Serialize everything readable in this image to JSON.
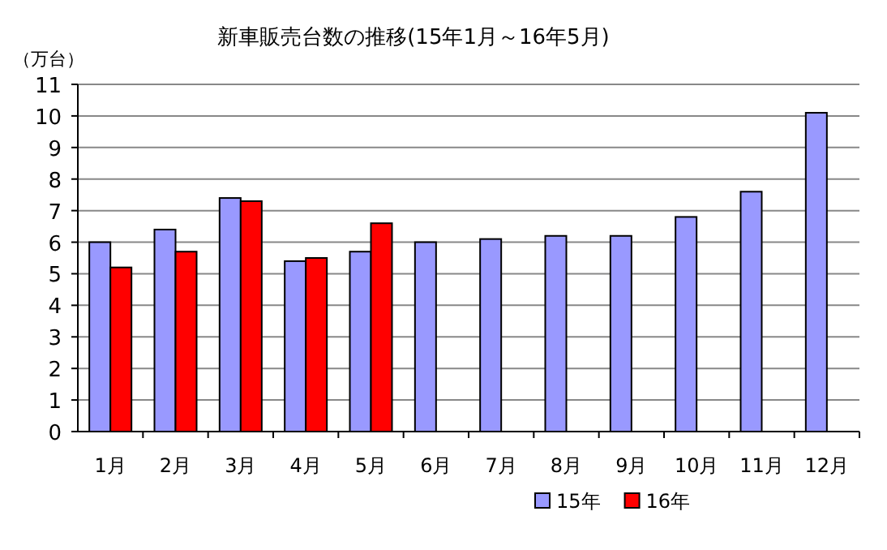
{
  "chart_data": {
    "type": "bar",
    "title": "新車販売台数の推移(15年1月～16年5月)",
    "ylabel": "（万台）",
    "categories": [
      "1月",
      "2月",
      "3月",
      "4月",
      "5月",
      "6月",
      "7月",
      "8月",
      "9月",
      "10月",
      "11月",
      "12月"
    ],
    "series": [
      {
        "name": "15年",
        "color": "#9999ff",
        "values": [
          6.0,
          6.4,
          7.4,
          5.4,
          5.7,
          6.0,
          6.1,
          6.2,
          6.2,
          6.8,
          7.6,
          10.1
        ]
      },
      {
        "name": "16年",
        "color": "#ff0000",
        "values": [
          5.2,
          5.7,
          7.3,
          5.5,
          6.6,
          null,
          null,
          null,
          null,
          null,
          null,
          null
        ]
      }
    ],
    "ylim": [
      0,
      11
    ],
    "yticks": [
      0,
      1,
      2,
      3,
      4,
      5,
      6,
      7,
      8,
      9,
      10,
      11
    ],
    "grid": "y",
    "legend": "bottom"
  }
}
